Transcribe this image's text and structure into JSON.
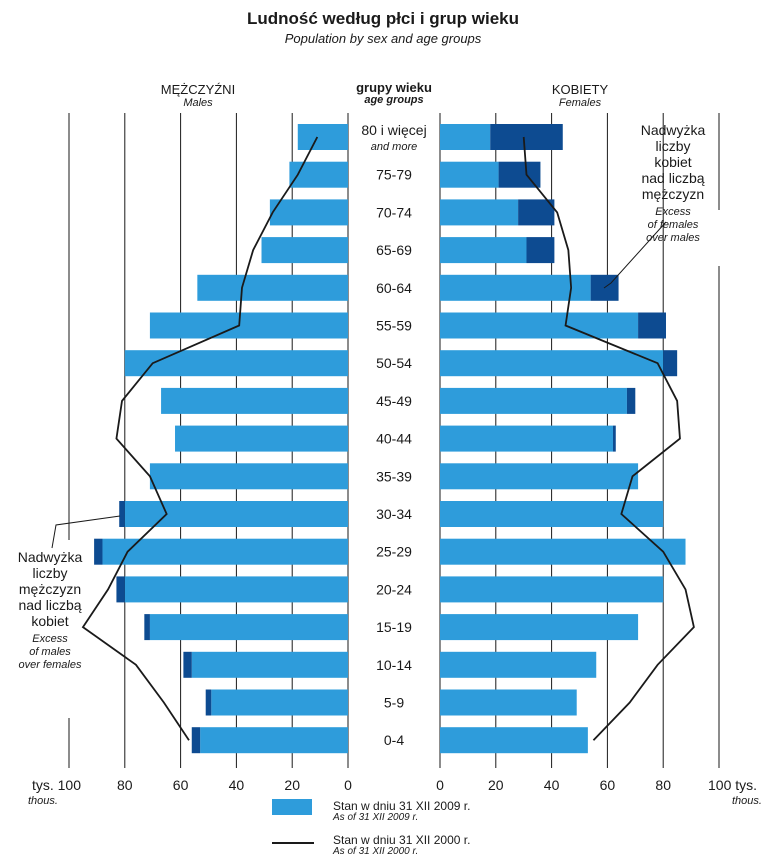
{
  "title": "Ludność według płci i grup wieku",
  "subtitle": "Population by sex and age groups",
  "headers": {
    "males_pl": "MĘŻCZYŹNI",
    "males_en": "Males",
    "age_pl": "grupy wieku",
    "age_en": "age groups",
    "females_pl": "KOBIETY",
    "females_en": "Females"
  },
  "annotations": {
    "excess_females_pl": [
      "Nadwyżka",
      "liczby",
      "kobiet",
      "nad liczbą",
      "mężczyzn"
    ],
    "excess_females_en": [
      "Excess",
      "of females",
      "over males"
    ],
    "excess_males_pl": [
      "Nadwyżka",
      "liczby",
      "mężczyzn",
      "nad liczbą",
      "kobiet"
    ],
    "excess_males_en": [
      "Excess",
      "of males",
      "over females"
    ]
  },
  "units": {
    "left_pl": "tys.",
    "left_en": "thous.",
    "right_pl": "tys.",
    "right_en": "thous."
  },
  "legend": {
    "bar_pl": "Stan w dniu 31 XII 2009 r.",
    "bar_en": "As of 31 XII 2009 r.",
    "line_pl": "Stan w dniu 31 XII 2000 r.",
    "line_en": "As of 31 XII 2000 r."
  },
  "colors": {
    "bar": "#2e9cdb",
    "excess": "#0d4b91",
    "line": "#1a1a1a",
    "grid": "#1a1a1a"
  },
  "chart_data": {
    "type": "bar",
    "subtype": "population-pyramid",
    "age_groups": [
      "80 i więcej",
      "75-79",
      "70-74",
      "65-69",
      "60-64",
      "55-59",
      "50-54",
      "45-49",
      "40-44",
      "35-39",
      "30-34",
      "25-29",
      "20-24",
      "15-19",
      "10-14",
      "5-9",
      "0-4"
    ],
    "age_group_second_line": {
      "80 i więcej": "and more"
    },
    "x_ticks_left": [
      "tys. 100",
      "80",
      "60",
      "40",
      "20",
      "0"
    ],
    "x_ticks_right": [
      "0",
      "20",
      "40",
      "60",
      "80",
      "100 tys."
    ],
    "xlim": [
      0,
      100
    ],
    "series": [
      {
        "name": "Stan w dniu 31 XII 2009 r.",
        "sex": "males",
        "values": [
          18,
          21,
          28,
          31,
          54,
          71,
          80,
          67,
          62,
          71,
          82,
          91,
          83,
          73,
          59,
          51,
          56
        ]
      },
      {
        "name": "Stan w dniu 31 XII 2009 r.",
        "sex": "females",
        "values": [
          44,
          36,
          41,
          41,
          64,
          81,
          85,
          70,
          63,
          71,
          80,
          88,
          80,
          71,
          56,
          49,
          53
        ]
      },
      {
        "name": "Stan w dniu 31 XII 2000 r.",
        "sex": "males",
        "values": [
          11,
          18,
          27,
          34,
          38,
          39,
          70,
          81,
          83,
          71,
          65,
          79,
          86,
          95,
          76,
          66,
          57
        ]
      },
      {
        "name": "Stan w dniu 31 XII 2000 r.",
        "sex": "females",
        "values": [
          30,
          31,
          42,
          46,
          47,
          45,
          78,
          85,
          86,
          69,
          65,
          80,
          88,
          91,
          78,
          68,
          55
        ]
      }
    ]
  }
}
